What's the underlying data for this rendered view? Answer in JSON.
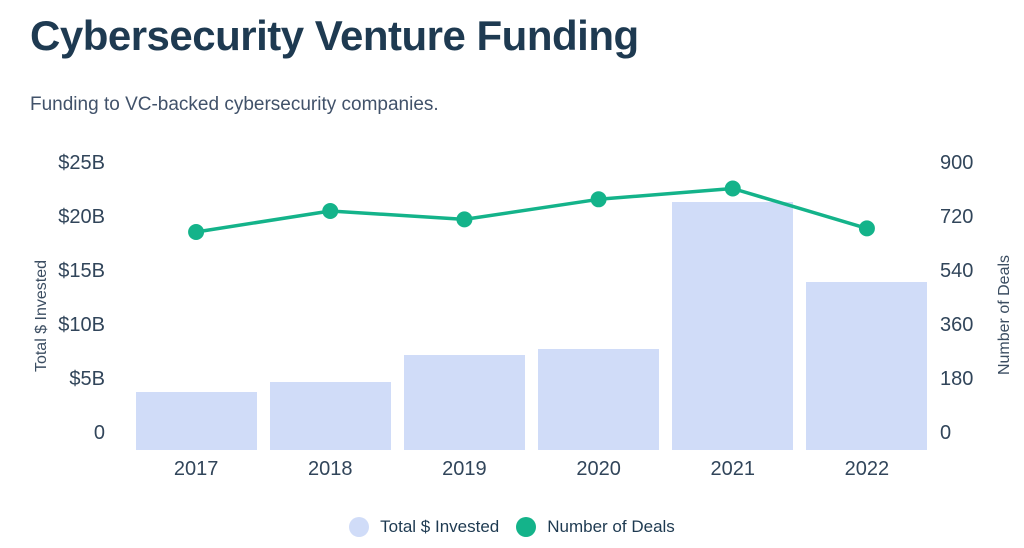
{
  "header": {
    "title": "Cybersecurity Venture Funding",
    "subtitle": "Funding to VC-backed cybersecurity companies."
  },
  "chart_data": {
    "type": "bar",
    "title": "Cybersecurity Venture Funding",
    "subtitle": "Funding to VC-backed cybersecurity companies.",
    "categories": [
      "2017",
      "2018",
      "2019",
      "2020",
      "2021",
      "2022"
    ],
    "series": [
      {
        "name": "Total $ Invested",
        "mark": "bar",
        "axis": "left",
        "unit": "USD billions",
        "values": [
          3.8,
          4.7,
          7.2,
          7.8,
          21.4,
          14.0
        ],
        "color": "#d0dcf8"
      },
      {
        "name": "Number of Deals",
        "mark": "line",
        "axis": "right",
        "unit": "deals",
        "values": [
          670,
          740,
          712,
          779,
          815,
          682
        ],
        "color": "#14b38a"
      }
    ],
    "left_axis": {
      "label": "Total $ Invested",
      "tick_labels": [
        "$25B",
        "$20B",
        "$15B",
        "$10B",
        "$5B",
        "0"
      ],
      "min": 0,
      "max": 25
    },
    "right_axis": {
      "label": "Number of Deals",
      "tick_labels": [
        "900",
        "720",
        "540",
        "360",
        "180",
        "0"
      ],
      "min": 0,
      "max": 900
    },
    "x_axis": {
      "tick_labels": [
        "2017",
        "2018",
        "2019",
        "2020",
        "2021",
        "2022"
      ]
    },
    "grid": false,
    "legend_position": "bottom-center"
  },
  "legend": {
    "items": [
      {
        "label": "Total $ Invested",
        "color": "#d0dcf8"
      },
      {
        "label": "Number of Deals",
        "color": "#14b38a"
      }
    ]
  },
  "colors": {
    "title": "#1e3a51",
    "subtitle": "#41526a",
    "axis_text": "#31455a",
    "bar": "#d0dcf8",
    "line": "#14b38a",
    "background": "#ffffff"
  }
}
